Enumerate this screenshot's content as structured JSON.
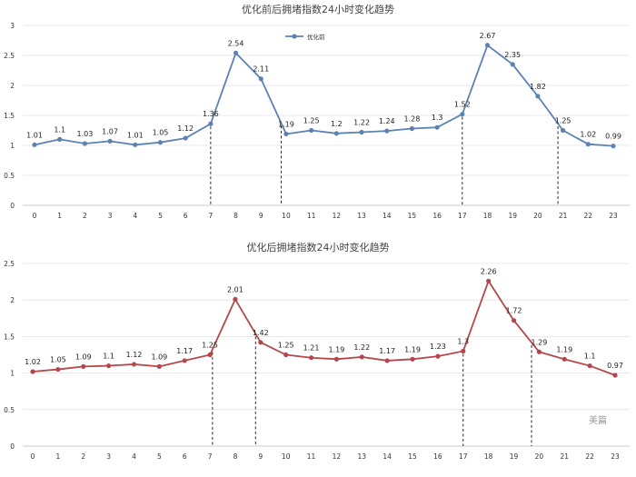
{
  "chart_data": [
    {
      "type": "line",
      "title": "优化前后拥堵指数24小时变化趋势",
      "x": [
        "0",
        "1",
        "2",
        "3",
        "4",
        "5",
        "6",
        "7",
        "8",
        "9",
        "10",
        "11",
        "12",
        "13",
        "14",
        "15",
        "16",
        "17",
        "18",
        "19",
        "20",
        "21",
        "22",
        "23"
      ],
      "series": [
        {
          "name": "优化前",
          "color": "#5b82b3",
          "values": [
            1.01,
            1.1,
            1.03,
            1.07,
            1.01,
            1.05,
            1.12,
            1.36,
            2.54,
            2.11,
            1.19,
            1.25,
            1.2,
            1.22,
            1.24,
            1.28,
            1.3,
            1.52,
            2.67,
            2.35,
            1.82,
            1.25,
            1.02,
            0.99
          ],
          "value_labels": [
            "1.01",
            "1.1",
            "1.03",
            "1.07",
            "1.01",
            "1.05",
            "1.12",
            "1.36",
            "2.54",
            "2.11",
            "1.19",
            "1.25",
            "1.2",
            "1.22",
            "1.24",
            "1.28",
            "1.3",
            "1.52",
            "2.67",
            "2.35",
            "1.82",
            "1.25",
            "1.02",
            "0.99"
          ]
        }
      ],
      "y_ticks": [
        "0",
        "0.5",
        "1",
        "1.5",
        "2",
        "2.5",
        "3"
      ],
      "ylim": [
        0,
        3
      ],
      "dashed_markers_at_x": [
        7,
        9.8,
        17,
        20.8
      ],
      "legend": "top-center",
      "grid": "horizontal"
    },
    {
      "type": "line",
      "title": "优化后拥堵指数24小时变化趋势",
      "x": [
        "0",
        "1",
        "2",
        "3",
        "4",
        "5",
        "6",
        "7",
        "8",
        "9",
        "10",
        "11",
        "12",
        "13",
        "14",
        "15",
        "16",
        "17",
        "18",
        "19",
        "20",
        "21",
        "22",
        "23"
      ],
      "series": [
        {
          "name": "",
          "color": "#b5474b",
          "values": [
            1.02,
            1.05,
            1.09,
            1.1,
            1.12,
            1.09,
            1.17,
            1.25,
            2.01,
            1.42,
            1.25,
            1.21,
            1.19,
            1.22,
            1.17,
            1.19,
            1.23,
            1.3,
            2.26,
            1.72,
            1.29,
            1.19,
            1.1,
            0.97
          ],
          "value_labels": [
            "1.02",
            "1.05",
            "1.09",
            "1.1",
            "1.12",
            "1.09",
            "1.17",
            "1.25",
            "2.01",
            "1.42",
            "1.25",
            "1.21",
            "1.19",
            "1.22",
            "1.17",
            "1.19",
            "1.23",
            "1.3",
            "2.26",
            "1.72",
            "1.29",
            "1.19",
            "1.1",
            "0.97"
          ]
        }
      ],
      "y_ticks": [
        "0",
        "0.5",
        "1",
        "1.5",
        "2",
        "2.5"
      ],
      "ylim": [
        0,
        2.5
      ],
      "dashed_markers_at_x": [
        7.1,
        8.8,
        17,
        19.7
      ],
      "grid": "horizontal"
    }
  ],
  "watermark": "美篇"
}
